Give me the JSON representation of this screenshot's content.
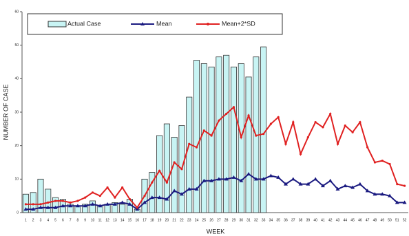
{
  "chart_data": {
    "type": "bar-line",
    "x_label": "WEEK",
    "y_label": "NUMBER OF CASE",
    "categories": [
      1,
      2,
      3,
      4,
      5,
      6,
      7,
      8,
      9,
      10,
      11,
      12,
      13,
      14,
      15,
      16,
      17,
      18,
      19,
      20,
      21,
      22,
      23,
      24,
      25,
      26,
      27,
      28,
      29,
      30,
      31,
      32,
      33,
      34,
      35,
      36,
      37,
      38,
      39,
      40,
      41,
      42,
      43,
      44,
      45,
      46,
      47,
      48,
      49,
      50,
      51,
      52
    ],
    "series": [
      {
        "name": "Actual Case",
        "kind": "bar",
        "color": "#c8f4f4",
        "values": [
          5.5,
          6,
          10,
          7,
          4.5,
          4,
          2.5,
          2,
          2.5,
          3.5,
          2,
          2.5,
          3,
          2.5,
          4,
          1,
          10,
          12,
          23,
          26.5,
          22.5,
          26,
          34.5,
          45.5,
          44.5,
          43.5,
          46.5,
          47,
          43.5,
          44.5,
          40.5,
          46.5,
          49.5,
          null,
          null,
          null,
          null,
          null,
          null,
          null,
          null,
          null,
          null,
          null,
          null,
          null,
          null,
          null,
          null,
          null,
          null,
          null
        ]
      },
      {
        "name": "Mean",
        "kind": "line",
        "color": "#1a1a80",
        "values": [
          1,
          1,
          1.5,
          1.5,
          1.5,
          2,
          2,
          2,
          2,
          2.5,
          2,
          2.5,
          2.5,
          3,
          2.5,
          1,
          3,
          4.5,
          4.5,
          4,
          6.5,
          5.5,
          7,
          7,
          9.5,
          9.5,
          10,
          10,
          10.5,
          9.5,
          11.5,
          10,
          10,
          11,
          10.5,
          8.5,
          10,
          8.5,
          8.5,
          10,
          8,
          9.5,
          7,
          8,
          7.5,
          8.5,
          6.5,
          5.5,
          5.5,
          5,
          3,
          3
        ]
      },
      {
        "name": "Mean+2*SD",
        "kind": "line",
        "color": "#e02020",
        "values": [
          2.5,
          2.5,
          2.5,
          3,
          3.5,
          3.5,
          3,
          3.5,
          4.5,
          6,
          5,
          7.5,
          4.5,
          7.5,
          4,
          1.5,
          5,
          9,
          12.5,
          9,
          15,
          13,
          20.5,
          19.5,
          24.5,
          23,
          27.5,
          29.5,
          31.5,
          22.5,
          29,
          23,
          23.5,
          26.5,
          28.5,
          20.5,
          27,
          17.5,
          22.5,
          27,
          25.5,
          29.5,
          20.5,
          26,
          24,
          27,
          19.5,
          15,
          15.5,
          14.5,
          8.5,
          8
        ]
      }
    ],
    "ylim": [
      0,
      60
    ],
    "yticks": [
      0,
      10,
      20,
      30,
      40,
      50,
      60
    ]
  }
}
